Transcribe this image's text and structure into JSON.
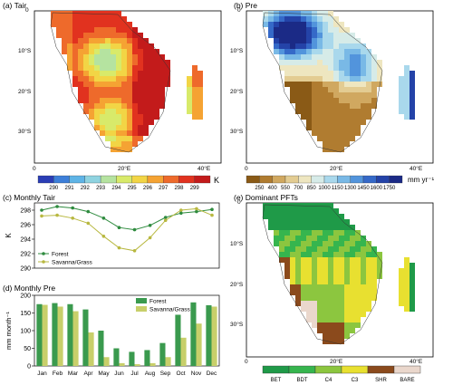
{
  "panels": {
    "a": {
      "title": "(a) Tair",
      "lat_ticks": [
        "0",
        "10°S",
        "20°S",
        "30°S"
      ],
      "lon_ticks": [
        "0",
        "20°E",
        "40°E"
      ],
      "colorbar_labels": [
        "290",
        "291",
        "292",
        "293",
        "294",
        "295",
        "296",
        "297",
        "298",
        "299"
      ],
      "unit": "K",
      "colors": [
        "#2a3db5",
        "#3d7fd9",
        "#5fb4e6",
        "#8fd3e0",
        "#b5e3a0",
        "#d8ea6a",
        "#f2d545",
        "#f5a333",
        "#ee6a2b",
        "#e1321f",
        "#c31b1b"
      ]
    },
    "b": {
      "title": "(b) Pre",
      "lat_ticks": [
        "0",
        "10°S",
        "20°S",
        "30°S"
      ],
      "lon_ticks": [
        "0",
        "20°E",
        "40°E"
      ],
      "colorbar_labels": [
        "250",
        "400",
        "550",
        "700",
        "850",
        "1000",
        "1150",
        "1300",
        "1450",
        "1600",
        "1750"
      ],
      "unit": "mm yr⁻¹",
      "colors": [
        "#8a5a16",
        "#b07c30",
        "#d0a860",
        "#e3cc92",
        "#eee6c0",
        "#d6ebe8",
        "#a9d8ec",
        "#79b9e6",
        "#5294dc",
        "#3569c8",
        "#2443a8",
        "#1b2a86"
      ]
    },
    "c": {
      "title": "(c) Monthly Tair",
      "ylabel": "K",
      "yticks": [
        "290",
        "292",
        "294",
        "296",
        "298"
      ],
      "legend": [
        "Forest",
        "Savanna/Grass"
      ]
    },
    "d": {
      "title": "(d) Monthly Pre",
      "ylabel": "mm month⁻¹",
      "yticks": [
        "0",
        "50",
        "100",
        "150",
        "200"
      ],
      "legend": [
        "Forest",
        "Savanna/Grass"
      ],
      "months": [
        "Jan",
        "Feb",
        "Mar",
        "Apr",
        "May",
        "Jun",
        "Jul",
        "Aug",
        "Sep",
        "Oct",
        "Nov",
        "Dec"
      ]
    },
    "e": {
      "title": "(e) Dominant PFTs",
      "lat_ticks": [
        "0",
        "10°S",
        "20°S",
        "30°S"
      ],
      "lon_ticks": [
        "0",
        "20°E",
        "40°E"
      ],
      "legend_labels": [
        "BET",
        "BDT",
        "C4",
        "C3",
        "SHR",
        "BARE"
      ],
      "legend_colors": [
        "#1f9a48",
        "#36b54e",
        "#8cc63f",
        "#e8e030",
        "#8b4a1c",
        "#ead7cc"
      ]
    }
  },
  "chart_data": [
    {
      "type": "line",
      "title": "(c) Monthly Tair",
      "xlabel": "",
      "ylabel": "K",
      "ylim": [
        290,
        299
      ],
      "categories": [
        "Jan",
        "Feb",
        "Mar",
        "Apr",
        "May",
        "Jun",
        "Jul",
        "Aug",
        "Sep",
        "Oct",
        "Nov",
        "Dec"
      ],
      "series": [
        {
          "name": "Forest",
          "color": "#2e8b3e",
          "values": [
            298.0,
            298.5,
            298.3,
            297.8,
            296.9,
            295.6,
            295.3,
            295.9,
            297.0,
            297.6,
            297.8,
            298.1
          ]
        },
        {
          "name": "Savanna/Grass",
          "color": "#b8b840",
          "values": [
            297.2,
            297.3,
            296.9,
            296.2,
            294.4,
            292.8,
            292.4,
            294.2,
            296.6,
            298.0,
            298.2,
            297.3
          ]
        }
      ]
    },
    {
      "type": "bar",
      "title": "(d) Monthly Pre",
      "xlabel": "",
      "ylabel": "mm month⁻¹",
      "ylim": [
        0,
        200
      ],
      "categories": [
        "Jan",
        "Feb",
        "Mar",
        "Apr",
        "May",
        "Jun",
        "Jul",
        "Aug",
        "Sep",
        "Oct",
        "Nov",
        "Dec"
      ],
      "series": [
        {
          "name": "Forest",
          "color": "#3a9a4e",
          "values": [
            175,
            178,
            175,
            160,
            100,
            50,
            40,
            45,
            65,
            145,
            180,
            172
          ]
        },
        {
          "name": "Savanna/Grass",
          "color": "#c8cf6a",
          "values": [
            173,
            168,
            155,
            95,
            25,
            8,
            5,
            8,
            25,
            80,
            120,
            168
          ]
        }
      ]
    }
  ]
}
